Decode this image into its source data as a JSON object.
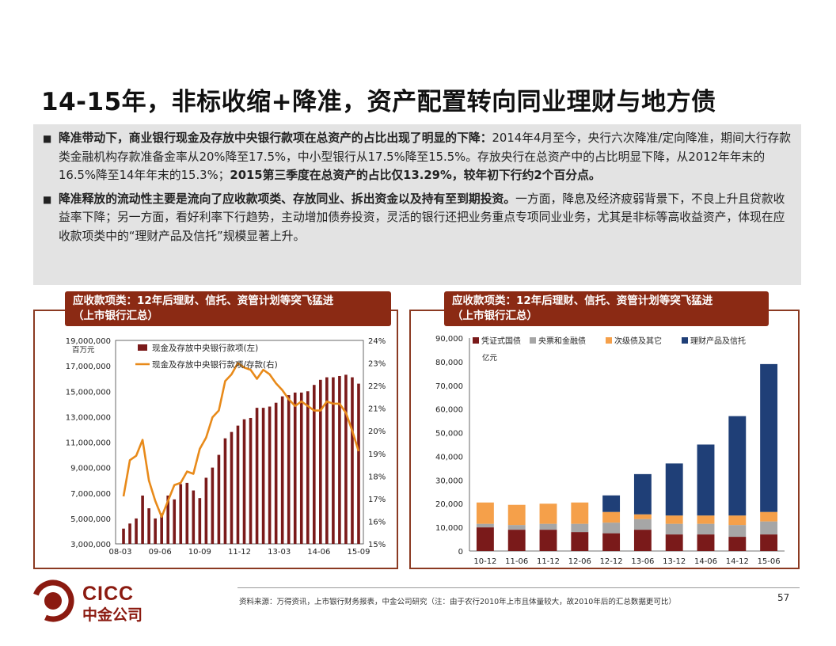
{
  "title": "14-15年，非标收缩+降准，资产配置转向同业理财与地方债",
  "bullets": [
    {
      "bold_lead": "降准带动下，商业银行现金及存放中央银行款项在总资产的占比出现了明显的下降：",
      "body": "2014年4月至今，央行六次降准/定向降准，期间大行存款类金融机构存款准备金率从20%降至17.5%，中小型银行从17.5%降至15.5%。存放央行在总资产中的占比明显下降，从2012年年末的16.5%降至14年年末的15.3%；",
      "bold_tail": "2015第三季度在总资产的占比仅13.29%，较年初下行约2个百分点。"
    },
    {
      "bold_lead": "降准释放的流动性主要是流向了应收款项类、存放同业、拆出资金以及持有至到期投资。",
      "body": "一方面，降息及经济疲弱背景下，不良上升且贷款收益率下降；另一方面，看好利率下行趋势，主动增加债券投资，灵活的银行还把业务重点专项同业业务，尤其是非标等高收益资产，体现在应收款项类中的“理财产品及信托”规模显著上升。",
      "bold_tail": ""
    }
  ],
  "left_panel": {
    "tab_line1": "应收款项类：12年后理财、信托、资管计划等突飞猛进",
    "tab_line2": "（上市银行汇总）"
  },
  "right_panel": {
    "tab_line1": "应收款项类：12年后理财、信托、资管计划等突飞猛进",
    "tab_line2": "（上市银行汇总）"
  },
  "chart_data": [
    {
      "type": "bar",
      "unit_label": "百万元",
      "ylim": [
        3000000,
        19000000
      ],
      "yticks": [
        "19,000,000",
        "17,000,000",
        "15,000,000",
        "13,000,000",
        "11,000,000",
        "9,000,000",
        "7,000,000",
        "5,000,000",
        "3,000,000"
      ],
      "y2lim": [
        15,
        24
      ],
      "y2ticks": [
        "24%",
        "23%",
        "22%",
        "21%",
        "20%",
        "19%",
        "18%",
        "17%",
        "16%",
        "15%"
      ],
      "xticks": [
        "08-03",
        "09-06",
        "10-09",
        "11-12",
        "13-03",
        "14-06",
        "15-09"
      ],
      "series": [
        {
          "name": "现金及存放中央银行款项(左)",
          "type": "bar",
          "color": "#7a1a1a",
          "values": [
            4200000,
            4600000,
            5000000,
            6800000,
            5800000,
            5000000,
            5400000,
            6800000,
            6500000,
            7700000,
            7800000,
            7200000,
            6600000,
            8200000,
            9000000,
            10000000,
            11300000,
            11800000,
            12300000,
            12800000,
            12900000,
            13700000,
            13700000,
            13800000,
            14100000,
            14600000,
            14700000,
            14900000,
            14900000,
            15000000,
            15500000,
            15900000,
            16100000,
            16100000,
            16200000,
            16300000,
            16100000,
            15600000
          ]
        },
        {
          "name": "现金及存放中央银行款项/存款(右)",
          "type": "line",
          "color": "#e88a1a",
          "values": [
            17.1,
            18.7,
            18.9,
            19.6,
            17.8,
            16.9,
            16.2,
            16.9,
            17.6,
            17.7,
            18.2,
            18.1,
            19.2,
            19.7,
            20.6,
            20.9,
            22.2,
            22.5,
            23.0,
            22.8,
            22.7,
            22.3,
            22.7,
            22.5,
            22.1,
            21.8,
            21.4,
            21.1,
            21.3,
            21.1,
            20.9,
            20.9,
            21.3,
            21.2,
            21.2,
            20.8,
            20.0,
            19.1
          ]
        }
      ]
    },
    {
      "type": "bar",
      "stacked": true,
      "unit_label": "亿元",
      "ylim": [
        0,
        90000
      ],
      "yticks": [
        "90,000",
        "80,000",
        "70,000",
        "60,000",
        "50,000",
        "40,000",
        "30,000",
        "20,000",
        "10,000",
        "0"
      ],
      "categories": [
        "10-12",
        "11-06",
        "11-12",
        "12-06",
        "12-12",
        "13-06",
        "13-12",
        "14-06",
        "14-12",
        "15-06"
      ],
      "series": [
        {
          "name": "凭证式国债",
          "color": "#7a1a1a",
          "values": [
            10000,
            9000,
            9000,
            8000,
            7500,
            9000,
            7000,
            7000,
            6000,
            7000
          ]
        },
        {
          "name": "央票和金融债",
          "color": "#a6a6a6",
          "values": [
            1500,
            2000,
            2500,
            3500,
            4500,
            4500,
            4500,
            4500,
            5000,
            5500
          ]
        },
        {
          "name": "次级债及其它",
          "color": "#f5a04a",
          "values": [
            9000,
            8500,
            8500,
            9000,
            4500,
            2000,
            3500,
            3500,
            4000,
            4000
          ]
        },
        {
          "name": "理财产品及信托",
          "color": "#1f3f77",
          "values": [
            0,
            0,
            0,
            0,
            7000,
            17000,
            22000,
            30000,
            42000,
            62500
          ]
        }
      ]
    }
  ],
  "source_note": "资料来源：万得资讯，上市银行财务报表，中金公司研究（注：由于农行2010年上市且体量较大，故2010年后的汇总数据更可比）",
  "page_number": "57",
  "logo": {
    "en": "CICC",
    "cn": "中金公司",
    "color": "#8b1a10"
  }
}
